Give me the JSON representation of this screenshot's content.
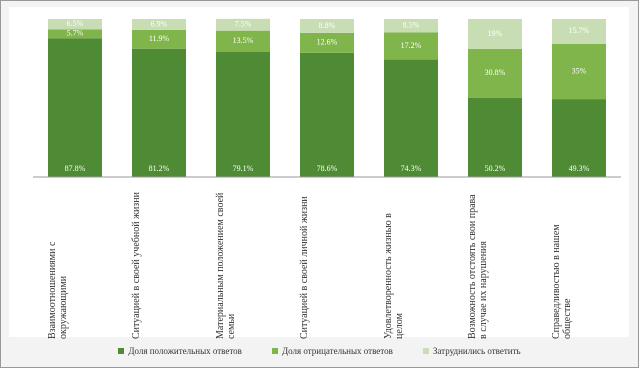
{
  "chart_data": {
    "type": "stacked_bar",
    "categories": [
      "Взаимоотношениями с окружающими",
      "Ситуацией в своей учебной жизни",
      "Материальным положением своей семьи",
      "Ситуацией в своей личной жизни",
      "Удовлетворенность жизнью в целом",
      "Возможность отстоять свои права в случае их нарушения",
      "Справедливостью в нашем обществе"
    ],
    "ylim": [
      0,
      100
    ],
    "series": [
      {
        "name": "Доля положительных ответов",
        "color": "#4f8a35",
        "values": [
          87.8,
          81.2,
          79.1,
          78.6,
          74.3,
          50.2,
          49.3
        ],
        "value_labels": [
          "87.8%",
          "81.2%",
          "79.1%",
          "78.6%",
          "74.3%",
          "50.2%",
          "49.3%"
        ]
      },
      {
        "name": "Доля отрицательных ответов",
        "color": "#80b54c",
        "values": [
          5.7,
          11.9,
          13.5,
          12.6,
          17.2,
          30.8,
          35
        ],
        "value_labels": [
          "5.7%",
          "11.9%",
          "13.5%",
          "12.6%",
          "17.2%",
          "30.8%",
          "35%"
        ]
      },
      {
        "name": "Затруднились ответить",
        "color": "#c9ddb4",
        "values": [
          6.5,
          6.9,
          7.5,
          8.8,
          8.5,
          19,
          15.7
        ],
        "value_labels": [
          "6.5%",
          "6.9%",
          "7.5%",
          "8.8%",
          "8.5%",
          "19%",
          "15.7%"
        ]
      }
    ]
  }
}
